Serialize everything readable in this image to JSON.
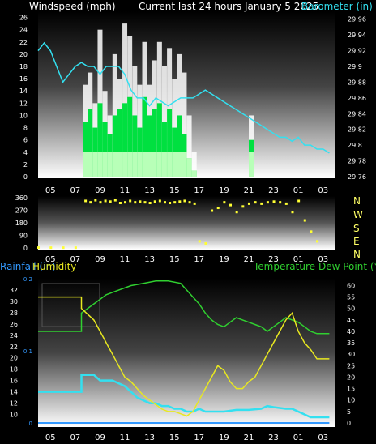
{
  "header": {
    "windspeed_label": "Windspeed (mph)",
    "center_title": "Current last 24 hours January 5 2025",
    "barometer_label": "Barometer (in)"
  },
  "bottom_header": {
    "rainfall_label": "Rainfall (in)",
    "humidity_label": "Humidity",
    "temp_label": "Temperature",
    "dewpoint_label": "Dew Point (°F)"
  },
  "compass": [
    "N",
    "W",
    "S",
    "E",
    "N"
  ],
  "x_ticks": [
    "05",
    "07",
    "09",
    "11",
    "13",
    "15",
    "17",
    "19",
    "21",
    "23",
    "01",
    "03"
  ],
  "colors": {
    "wind_gust": "#ffffff",
    "wind_avg": "#00e040",
    "wind_light": "#b8ffb8",
    "barometer": "#33e0f0",
    "direction": "#ffff33",
    "humidity": "#e8e820",
    "temperature": "#30d030",
    "dewpoint": "#30d030",
    "rainfall": "#3399ff",
    "cyan_series": "#33e0f0"
  },
  "chart_data": [
    {
      "type": "bar",
      "name": "wind",
      "y_left_label": "Windspeed (mph)",
      "y_left_ticks": [
        0,
        2,
        4,
        6,
        8,
        10,
        12,
        14,
        16,
        18,
        20,
        22,
        24,
        26
      ],
      "ylim_left": [
        0,
        27
      ],
      "y_right_label": "Barometer (in)",
      "y_right_ticks": [
        "29.76",
        "29.78",
        "29.8",
        "29.82",
        "29.84",
        "29.86",
        "29.88",
        "29.9",
        "29.92",
        "29.94",
        "29.96"
      ],
      "ylim_right": [
        29.76,
        29.97
      ],
      "grid": false,
      "x_hours": [
        4.0,
        28.0
      ],
      "gust": [
        [
          7.8,
          15
        ],
        [
          8.2,
          17
        ],
        [
          8.6,
          12
        ],
        [
          9.0,
          24
        ],
        [
          9.4,
          14
        ],
        [
          9.8,
          10
        ],
        [
          10.2,
          20
        ],
        [
          10.6,
          16
        ],
        [
          11.0,
          25
        ],
        [
          11.4,
          23
        ],
        [
          11.8,
          18
        ],
        [
          12.2,
          15
        ],
        [
          12.6,
          22
        ],
        [
          13.0,
          15
        ],
        [
          13.4,
          19
        ],
        [
          13.8,
          22
        ],
        [
          14.2,
          18
        ],
        [
          14.6,
          21
        ],
        [
          15.0,
          16
        ],
        [
          15.4,
          20
        ],
        [
          15.8,
          17
        ],
        [
          16.2,
          10
        ],
        [
          16.6,
          4
        ],
        [
          21.2,
          10
        ]
      ],
      "average": [
        [
          7.8,
          9
        ],
        [
          8.2,
          11
        ],
        [
          8.6,
          8
        ],
        [
          9.0,
          12
        ],
        [
          9.4,
          9
        ],
        [
          9.8,
          7
        ],
        [
          10.2,
          10
        ],
        [
          10.6,
          11
        ],
        [
          11.0,
          12
        ],
        [
          11.4,
          13
        ],
        [
          11.8,
          10
        ],
        [
          12.2,
          8
        ],
        [
          12.6,
          13
        ],
        [
          13.0,
          10
        ],
        [
          13.4,
          11
        ],
        [
          13.8,
          12
        ],
        [
          14.2,
          9
        ],
        [
          14.6,
          11
        ],
        [
          15.0,
          8
        ],
        [
          15.4,
          10
        ],
        [
          15.8,
          7
        ],
        [
          16.2,
          3
        ],
        [
          16.6,
          1
        ],
        [
          21.2,
          6
        ]
      ],
      "barometer": [
        [
          4.0,
          29.92
        ],
        [
          4.5,
          29.93
        ],
        [
          5.0,
          29.92
        ],
        [
          5.5,
          29.9
        ],
        [
          6.0,
          29.88
        ],
        [
          6.5,
          29.89
        ],
        [
          7.0,
          29.9
        ],
        [
          7.5,
          29.905
        ],
        [
          8.0,
          29.9
        ],
        [
          8.5,
          29.9
        ],
        [
          9.0,
          29.89
        ],
        [
          9.5,
          29.9
        ],
        [
          10.0,
          29.9
        ],
        [
          10.5,
          29.9
        ],
        [
          11.0,
          29.89
        ],
        [
          11.5,
          29.87
        ],
        [
          12.0,
          29.86
        ],
        [
          12.5,
          29.86
        ],
        [
          13.0,
          29.85
        ],
        [
          13.5,
          29.86
        ],
        [
          14.0,
          29.855
        ],
        [
          14.5,
          29.85
        ],
        [
          15.0,
          29.855
        ],
        [
          15.5,
          29.86
        ],
        [
          16.0,
          29.86
        ],
        [
          16.5,
          29.86
        ],
        [
          17.0,
          29.865
        ],
        [
          17.5,
          29.87
        ],
        [
          18.0,
          29.865
        ],
        [
          18.5,
          29.86
        ],
        [
          19.0,
          29.855
        ],
        [
          19.5,
          29.85
        ],
        [
          20.0,
          29.845
        ],
        [
          20.5,
          29.84
        ],
        [
          21.0,
          29.835
        ],
        [
          21.5,
          29.83
        ],
        [
          22.0,
          29.825
        ],
        [
          22.5,
          29.82
        ],
        [
          23.0,
          29.815
        ],
        [
          23.5,
          29.81
        ],
        [
          24.0,
          29.81
        ],
        [
          24.5,
          29.805
        ],
        [
          25.0,
          29.81
        ],
        [
          25.5,
          29.8
        ],
        [
          26.0,
          29.8
        ],
        [
          26.5,
          29.795
        ],
        [
          27.0,
          29.795
        ],
        [
          27.5,
          29.79
        ]
      ]
    },
    {
      "type": "scatter",
      "name": "wind_direction",
      "y_ticks": [
        0,
        90,
        180,
        270,
        360
      ],
      "ylim": [
        0,
        360
      ],
      "points": [
        [
          4.0,
          5
        ],
        [
          5.0,
          5
        ],
        [
          6.0,
          5
        ],
        [
          7.0,
          5
        ],
        [
          7.8,
          340
        ],
        [
          8.2,
          330
        ],
        [
          8.6,
          345
        ],
        [
          9.0,
          330
        ],
        [
          9.4,
          340
        ],
        [
          9.8,
          335
        ],
        [
          10.2,
          345
        ],
        [
          10.6,
          325
        ],
        [
          11.0,
          330
        ],
        [
          11.4,
          340
        ],
        [
          11.8,
          330
        ],
        [
          12.2,
          335
        ],
        [
          12.6,
          330
        ],
        [
          13.0,
          325
        ],
        [
          13.4,
          335
        ],
        [
          13.8,
          340
        ],
        [
          14.2,
          330
        ],
        [
          14.6,
          325
        ],
        [
          15.0,
          330
        ],
        [
          15.4,
          335
        ],
        [
          15.8,
          340
        ],
        [
          16.2,
          330
        ],
        [
          16.6,
          320
        ],
        [
          17.0,
          50
        ],
        [
          17.5,
          35
        ],
        [
          18.0,
          270
        ],
        [
          18.5,
          290
        ],
        [
          19.0,
          330
        ],
        [
          19.5,
          310
        ],
        [
          20.0,
          260
        ],
        [
          20.5,
          300
        ],
        [
          21.0,
          320
        ],
        [
          21.5,
          330
        ],
        [
          22.0,
          320
        ],
        [
          22.5,
          330
        ],
        [
          23.0,
          335
        ],
        [
          23.5,
          330
        ],
        [
          24.0,
          320
        ],
        [
          24.5,
          260
        ],
        [
          25.0,
          340
        ],
        [
          25.5,
          200
        ],
        [
          26.0,
          120
        ],
        [
          26.5,
          50
        ]
      ]
    },
    {
      "type": "line",
      "name": "bottom",
      "y_left_ticks": [
        10,
        12,
        14,
        16,
        18,
        20,
        22,
        24,
        26,
        28,
        30,
        32
      ],
      "ylim_left": [
        8.5,
        34
      ],
      "rain_ticks": [
        "0",
        "0.1",
        "0.2"
      ],
      "ylim_rain": [
        0,
        0.2
      ],
      "y_right_ticks": [
        0,
        5,
        10,
        15,
        20,
        25,
        30,
        35,
        40,
        45,
        50,
        55,
        60
      ],
      "ylim_right": [
        0,
        63
      ],
      "humidity": [
        [
          4.0,
          55
        ],
        [
          7.5,
          55
        ],
        [
          7.5,
          50
        ],
        [
          8.5,
          45
        ],
        [
          9.0,
          40
        ],
        [
          9.5,
          35
        ],
        [
          10.0,
          30
        ],
        [
          10.5,
          25
        ],
        [
          11.0,
          20
        ],
        [
          11.5,
          18
        ],
        [
          12.0,
          15
        ],
        [
          12.5,
          12
        ],
        [
          13.0,
          10
        ],
        [
          13.5,
          8
        ],
        [
          14.0,
          6
        ],
        [
          14.5,
          5
        ],
        [
          15.0,
          5
        ],
        [
          15.5,
          4
        ],
        [
          16.0,
          3
        ],
        [
          16.5,
          5
        ],
        [
          17.0,
          10
        ],
        [
          17.5,
          15
        ],
        [
          18.0,
          20
        ],
        [
          18.5,
          25
        ],
        [
          19.0,
          23
        ],
        [
          19.5,
          18
        ],
        [
          20.0,
          15
        ],
        [
          20.5,
          15
        ],
        [
          21.0,
          18
        ],
        [
          21.5,
          20
        ],
        [
          22.0,
          25
        ],
        [
          22.5,
          30
        ],
        [
          23.0,
          35
        ],
        [
          23.5,
          40
        ],
        [
          24.0,
          45
        ],
        [
          24.5,
          48
        ],
        [
          25.0,
          40
        ],
        [
          25.5,
          35
        ],
        [
          26.0,
          32
        ],
        [
          26.5,
          28
        ],
        [
          27.5,
          28
        ]
      ],
      "temperature": [
        [
          4.0,
          40
        ],
        [
          7.5,
          40
        ],
        [
          7.5,
          48
        ],
        [
          8.5,
          52
        ],
        [
          9.5,
          56
        ],
        [
          10.5,
          58
        ],
        [
          11.5,
          60
        ],
        [
          12.5,
          61
        ],
        [
          13.5,
          62
        ],
        [
          14.5,
          62
        ],
        [
          15.5,
          61
        ],
        [
          16.0,
          58
        ],
        [
          16.5,
          55
        ],
        [
          17.0,
          52
        ],
        [
          17.5,
          48
        ],
        [
          18.0,
          45
        ],
        [
          18.5,
          43
        ],
        [
          19.0,
          42
        ],
        [
          19.5,
          44
        ],
        [
          20.0,
          46
        ],
        [
          20.5,
          45
        ],
        [
          21.0,
          44
        ],
        [
          21.5,
          43
        ],
        [
          22.0,
          42
        ],
        [
          22.5,
          40
        ],
        [
          23.0,
          42
        ],
        [
          23.5,
          44
        ],
        [
          24.0,
          46
        ],
        [
          24.5,
          45
        ],
        [
          25.0,
          44
        ],
        [
          25.5,
          42
        ],
        [
          26.0,
          40
        ],
        [
          26.5,
          39
        ],
        [
          27.5,
          39
        ]
      ],
      "cyan": [
        [
          4.0,
          14
        ],
        [
          7.5,
          14
        ],
        [
          7.5,
          17
        ],
        [
          8.5,
          17
        ],
        [
          9.0,
          16
        ],
        [
          10.0,
          16
        ],
        [
          10.5,
          15.5
        ],
        [
          11.0,
          15
        ],
        [
          11.5,
          14
        ],
        [
          12.0,
          13
        ],
        [
          12.5,
          12.5
        ],
        [
          13.0,
          12
        ],
        [
          13.5,
          12
        ],
        [
          14.0,
          11.5
        ],
        [
          14.5,
          11.5
        ],
        [
          15.0,
          11
        ],
        [
          15.5,
          11
        ],
        [
          16.0,
          10.5
        ],
        [
          16.5,
          10.5
        ],
        [
          17.0,
          11
        ],
        [
          17.5,
          10.5
        ],
        [
          18.0,
          10.5
        ],
        [
          19.0,
          10.5
        ],
        [
          20.0,
          10.8
        ],
        [
          21.0,
          10.8
        ],
        [
          22.0,
          11
        ],
        [
          22.5,
          11.5
        ],
        [
          23.0,
          11.3
        ],
        [
          24.0,
          11
        ],
        [
          24.5,
          11
        ],
        [
          25.0,
          10.5
        ],
        [
          25.5,
          10
        ],
        [
          26.0,
          9.5
        ],
        [
          26.5,
          9.5
        ],
        [
          27.5,
          9.5
        ]
      ],
      "rain": [
        [
          4.0,
          0
        ],
        [
          27.5,
          0
        ]
      ]
    }
  ]
}
